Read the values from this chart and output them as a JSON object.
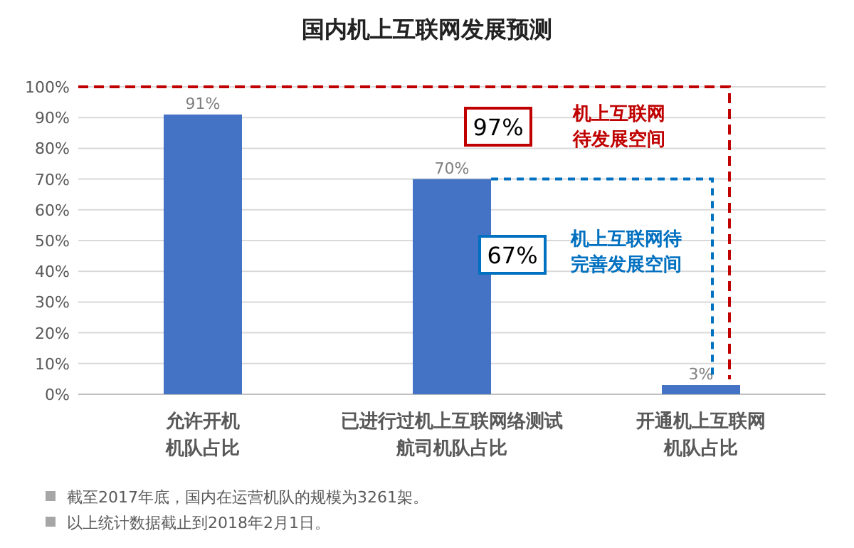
{
  "chart_data": {
    "type": "bar",
    "title": "国内机上互联网发展预测",
    "categories": [
      "允许开机机队占比",
      "已进行过机上互联网络测试航司机队占比",
      "开通机上互联网机队占比"
    ],
    "values": [
      91,
      70,
      3
    ],
    "color": "#4472c4",
    "value_labels": [
      "91%",
      "70%",
      "3%"
    ],
    "ylim": [
      0,
      100
    ],
    "yticks": [
      {
        "value": 0,
        "label": "0%"
      },
      {
        "value": 10,
        "label": "10%"
      },
      {
        "value": 20,
        "label": "20%"
      },
      {
        "value": 30,
        "label": "30%"
      },
      {
        "value": 40,
        "label": "40%"
      },
      {
        "value": 50,
        "label": "50%"
      },
      {
        "value": 60,
        "label": "60%"
      },
      {
        "value": 70,
        "label": "70%"
      },
      {
        "value": 80,
        "label": "80%"
      },
      {
        "value": 90,
        "label": "90%"
      },
      {
        "value": 100,
        "label": "100%"
      }
    ],
    "grid": "y",
    "legend": false,
    "annotations": [
      "97%",
      "机上互联网待发展空间",
      "67%",
      "机上互联网待完善发展空间",
      "截至2017年底，国内在运营机队的规模为3261架。",
      "以上统计数据截止到2018年2月1日。"
    ]
  }
}
